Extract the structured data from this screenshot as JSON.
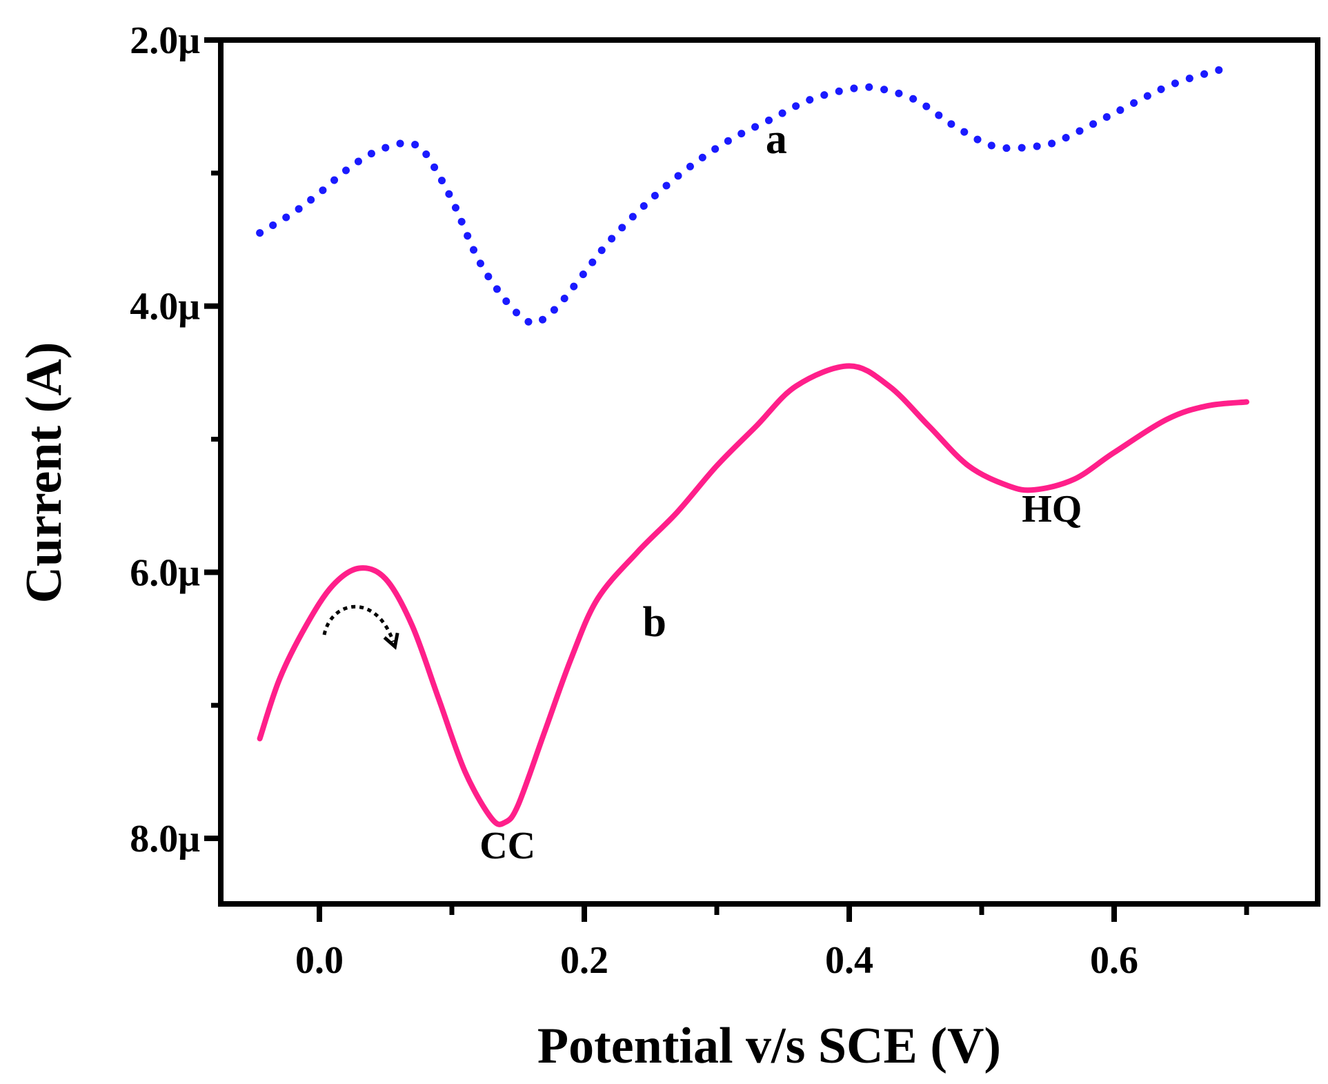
{
  "chart_data": {
    "type": "line",
    "title": "",
    "xlabel": "Potential  v/s SCE (V)",
    "ylabel": "Current (A)",
    "xlim": [
      -0.075,
      0.75
    ],
    "ylim": [
      2.0,
      8.5
    ],
    "y_inverted": true,
    "x_ticks": [
      {
        "value": 0.0,
        "label": "0.0"
      },
      {
        "value": 0.2,
        "label": "0.2"
      },
      {
        "value": 0.4,
        "label": "0.4"
      },
      {
        "value": 0.6,
        "label": "0.6"
      }
    ],
    "x_minor_ticks": [
      0.1,
      0.3,
      0.5,
      0.7
    ],
    "y_ticks": [
      {
        "value": 2.0,
        "label": "2.0μ"
      },
      {
        "value": 4.0,
        "label": "4.0μ"
      },
      {
        "value": 6.0,
        "label": "6.0μ"
      },
      {
        "value": 8.0,
        "label": "8.0μ"
      }
    ],
    "y_minor_ticks": [
      3.0,
      5.0,
      7.0
    ],
    "y_unit": "μA",
    "series": [
      {
        "name": "a",
        "style": "dotted",
        "color": "#1a1aff",
        "x": [
          -0.045,
          -0.02,
          0.0,
          0.02,
          0.04,
          0.06,
          0.07,
          0.08,
          0.1,
          0.12,
          0.14,
          0.155,
          0.165,
          0.18,
          0.2,
          0.22,
          0.25,
          0.28,
          0.31,
          0.34,
          0.37,
          0.4,
          0.42,
          0.45,
          0.48,
          0.51,
          0.54,
          0.56,
          0.6,
          0.64,
          0.67,
          0.69
        ],
        "values": [
          3.45,
          3.3,
          3.15,
          2.98,
          2.85,
          2.78,
          2.78,
          2.85,
          3.2,
          3.65,
          3.95,
          4.1,
          4.12,
          4.0,
          3.75,
          3.5,
          3.2,
          2.95,
          2.75,
          2.6,
          2.45,
          2.37,
          2.36,
          2.45,
          2.65,
          2.8,
          2.8,
          2.75,
          2.55,
          2.35,
          2.25,
          2.2
        ]
      },
      {
        "name": "b",
        "style": "solid",
        "color": "#ff1f8a",
        "x": [
          -0.045,
          -0.03,
          -0.01,
          0.01,
          0.03,
          0.05,
          0.07,
          0.09,
          0.11,
          0.13,
          0.14,
          0.15,
          0.17,
          0.19,
          0.21,
          0.24,
          0.27,
          0.3,
          0.33,
          0.36,
          0.4,
          0.43,
          0.46,
          0.49,
          0.52,
          0.54,
          0.57,
          0.6,
          0.64,
          0.67,
          0.7
        ],
        "values": [
          7.25,
          6.8,
          6.4,
          6.1,
          5.97,
          6.05,
          6.4,
          6.95,
          7.5,
          7.85,
          7.88,
          7.75,
          7.2,
          6.65,
          6.2,
          5.85,
          5.55,
          5.2,
          4.9,
          4.6,
          4.45,
          4.6,
          4.9,
          5.2,
          5.35,
          5.38,
          5.3,
          5.1,
          4.85,
          4.75,
          4.72
        ]
      }
    ],
    "annotations": [
      {
        "text": "a",
        "x": 0.345,
        "y": 2.85
      },
      {
        "text": "b",
        "x": 0.253,
        "y": 6.48
      },
      {
        "text": "HQ",
        "x": 0.553,
        "y": 5.62
      },
      {
        "text": "CC",
        "x": 0.142,
        "y": 8.15
      }
    ]
  }
}
